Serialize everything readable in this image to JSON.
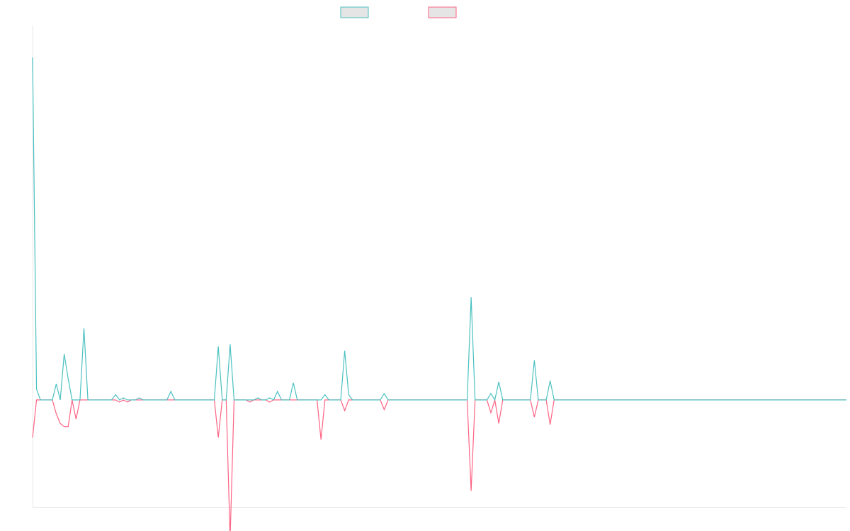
{
  "colors": {
    "positive": "#4bc0c0",
    "negative": "#ff6384",
    "legend_fill": "#e5e5e5",
    "axis": "#e5e5e5"
  },
  "chart_data": {
    "type": "line",
    "title": "",
    "xlabel": "",
    "ylabel": "",
    "grid": false,
    "legend_position": "top-center",
    "ylim": [
      -1,
      3.5
    ],
    "series": [
      {
        "values": [
          3.2,
          0.1,
          0,
          0,
          0,
          0,
          0.15,
          0,
          0.43,
          0.2,
          0,
          0,
          0,
          0.67,
          0,
          0,
          0,
          0,
          0,
          0,
          0,
          0.05,
          0,
          0.02,
          0,
          0,
          0,
          0.02,
          0,
          0,
          0,
          0,
          0,
          0,
          0,
          0.08,
          0,
          0,
          0,
          0,
          0,
          0,
          0,
          0,
          0,
          0,
          0,
          0.5,
          0,
          0,
          0.52,
          0,
          0,
          0,
          0,
          0,
          0,
          0.02,
          0,
          0,
          0.02,
          0,
          0.08,
          0,
          0,
          0,
          0.16,
          0,
          0,
          0,
          0,
          0,
          0,
          0,
          0.05,
          0,
          0,
          0,
          0,
          0.46,
          0.05,
          0,
          0,
          0,
          0,
          0,
          0,
          0,
          0,
          0.06,
          0,
          0,
          0,
          0,
          0,
          0,
          0,
          0,
          0,
          0,
          0,
          0,
          0,
          0,
          0,
          0,
          0,
          0,
          0,
          0,
          0,
          0.96,
          0,
          0,
          0,
          0,
          0.06,
          0,
          0.17,
          0,
          0,
          0,
          0,
          0,
          0,
          0,
          0,
          0.37,
          0,
          0,
          0,
          0.18,
          0,
          0,
          0,
          0,
          0,
          0,
          0,
          0,
          0,
          0,
          0,
          0,
          0,
          0,
          0,
          0,
          0,
          0,
          0,
          0,
          0,
          0,
          0,
          0,
          0,
          0,
          0,
          0,
          0,
          0,
          0,
          0,
          0,
          0,
          0,
          0,
          0,
          0,
          0,
          0,
          0,
          0,
          0,
          0,
          0,
          0,
          0,
          0,
          0,
          0,
          0,
          0,
          0,
          0,
          0,
          0,
          0,
          0,
          0,
          0,
          0,
          0,
          0,
          0,
          0,
          0,
          0,
          0,
          0,
          0,
          0,
          0,
          0,
          0,
          0
        ]
      },
      {
        "values": [
          -0.35,
          0,
          0,
          0,
          0,
          0,
          -0.13,
          -0.22,
          -0.25,
          -0.25,
          0,
          -0.18,
          0,
          0,
          0,
          0,
          0,
          0,
          0,
          0,
          0,
          0,
          -0.02,
          0,
          -0.02,
          0,
          0,
          0,
          0,
          0,
          0,
          0,
          0,
          0,
          0,
          0,
          0,
          0,
          0,
          0,
          0,
          0,
          0,
          0,
          0,
          0,
          0,
          -0.35,
          0,
          0,
          -1.3,
          0,
          0,
          0,
          0,
          -0.02,
          0,
          0,
          0,
          0,
          -0.02,
          0,
          0,
          0,
          0,
          0,
          0,
          0,
          0,
          0,
          0,
          0,
          0,
          -0.37,
          0,
          0,
          0,
          0,
          0,
          -0.1,
          0,
          0,
          0,
          0,
          0,
          0,
          0,
          0,
          0,
          -0.09,
          0,
          0,
          0,
          0,
          0,
          0,
          0,
          0,
          0,
          0,
          0,
          0,
          0,
          0,
          0,
          0,
          0,
          0,
          0,
          0,
          0,
          -0.85,
          0,
          0,
          0,
          0,
          -0.12,
          0,
          -0.22,
          0,
          0,
          0,
          0,
          0,
          0,
          0,
          0,
          -0.16,
          0,
          0,
          0,
          -0.23,
          0,
          0,
          0,
          0,
          0,
          0,
          0,
          0,
          0,
          0,
          0,
          0,
          0,
          0,
          0,
          0,
          0,
          0,
          0,
          0,
          0,
          0,
          0,
          0,
          0,
          0,
          0,
          0,
          0,
          0,
          0,
          0,
          0,
          0,
          0,
          0,
          0,
          0,
          0,
          0,
          0,
          0,
          0,
          0,
          0,
          0,
          0,
          0,
          0,
          0,
          0,
          0,
          0,
          0,
          0,
          0,
          0,
          0,
          0,
          0,
          0,
          0,
          0,
          0,
          0,
          0,
          0,
          0,
          0,
          0,
          0,
          0,
          0,
          0,
          0
        ]
      }
    ]
  }
}
